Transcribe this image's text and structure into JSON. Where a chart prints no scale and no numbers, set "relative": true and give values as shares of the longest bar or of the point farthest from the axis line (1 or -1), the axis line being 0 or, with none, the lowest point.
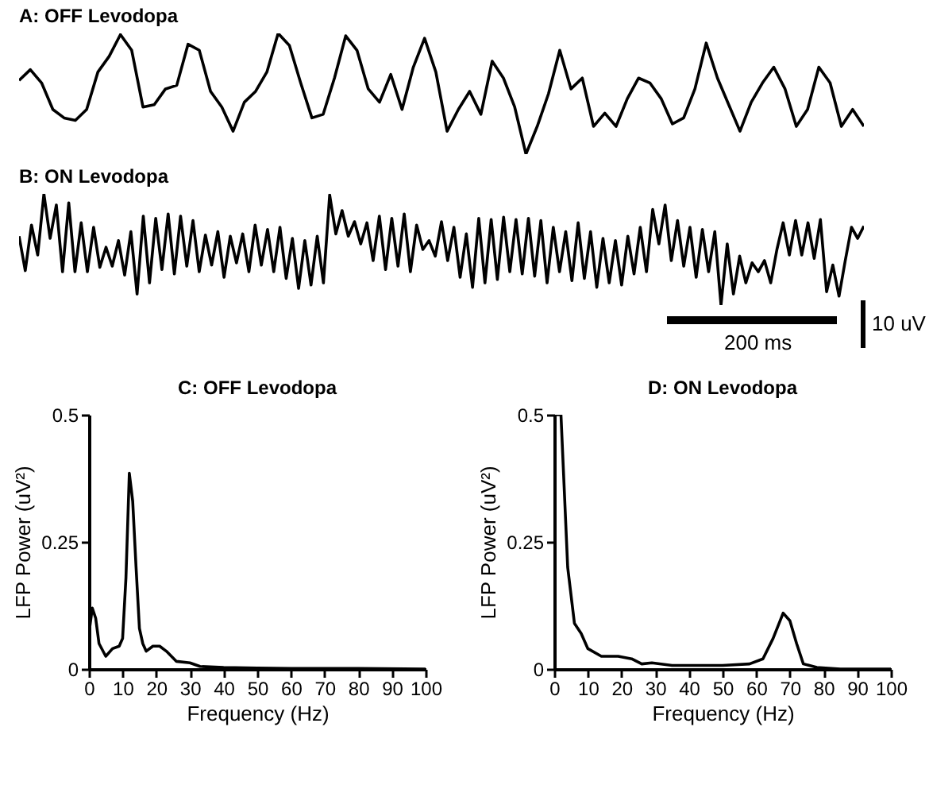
{
  "chart_data": [
    {
      "type": "line",
      "title": "A: OFF Levodopa",
      "relative": true,
      "color": "#000000",
      "categories": [
        null,
        null,
        null,
        null,
        null,
        null,
        null,
        null,
        null,
        null,
        null,
        null,
        null,
        null,
        null,
        null,
        null,
        null,
        null,
        null,
        null,
        null,
        null,
        null,
        null,
        null,
        null,
        null,
        null,
        null,
        null,
        null,
        null,
        null,
        null,
        null,
        null,
        null,
        null,
        null,
        null,
        null,
        null,
        null,
        null,
        null,
        null,
        null,
        null,
        null,
        null,
        null,
        null,
        null,
        null,
        null,
        null,
        null,
        null,
        null,
        null,
        null,
        null,
        null,
        null,
        null,
        null,
        null,
        null,
        null,
        null,
        null,
        null,
        null,
        null,
        null
      ],
      "values": [
        0.61,
        0.7,
        0.59,
        0.37,
        0.3,
        0.28,
        0.37,
        0.68,
        0.81,
        0.99,
        0.86,
        0.39,
        0.41,
        0.54,
        0.57,
        0.91,
        0.86,
        0.52,
        0.39,
        0.19,
        0.43,
        0.52,
        0.68,
        1.0,
        0.9,
        0.59,
        0.3,
        0.33,
        0.63,
        0.98,
        0.86,
        0.54,
        0.43,
        0.66,
        0.37,
        0.72,
        0.96,
        0.68,
        0.19,
        0.37,
        0.52,
        0.33,
        0.77,
        0.63,
        0.39,
        0.0,
        0.23,
        0.5,
        0.86,
        0.54,
        0.63,
        0.23,
        0.34,
        0.23,
        0.46,
        0.63,
        0.59,
        0.46,
        0.25,
        0.3,
        0.54,
        0.92,
        0.63,
        0.41,
        0.19,
        0.43,
        0.59,
        0.72,
        0.54,
        0.23,
        0.37,
        0.72,
        0.59,
        0.23,
        0.37,
        0.23
      ]
    },
    {
      "type": "line",
      "title": "B: ON Levodopa",
      "relative": true,
      "color": "#000000",
      "annotations": [
        "10 uV",
        "200 ms"
      ],
      "categories": [
        null,
        null,
        null,
        null,
        null,
        null,
        null,
        null,
        null,
        null,
        null,
        null,
        null,
        null,
        null,
        null,
        null,
        null,
        null,
        null,
        null,
        null,
        null,
        null,
        null,
        null,
        null,
        null,
        null,
        null,
        null,
        null,
        null,
        null,
        null,
        null,
        null,
        null,
        null,
        null,
        null,
        null,
        null,
        null,
        null,
        null,
        null,
        null,
        null,
        null,
        null,
        null,
        null,
        null,
        null,
        null,
        null,
        null,
        null,
        null,
        null,
        null,
        null,
        null,
        null,
        null,
        null,
        null,
        null,
        null,
        null,
        null,
        null,
        null,
        null,
        null,
        null,
        null,
        null,
        null,
        null,
        null,
        null,
        null,
        null,
        null,
        null,
        null,
        null,
        null,
        null,
        null,
        null,
        null,
        null,
        null,
        null,
        null,
        null,
        null,
        null,
        null,
        null,
        null,
        null,
        null,
        null,
        null,
        null,
        null,
        null,
        null,
        null,
        null,
        null,
        null,
        null,
        null,
        null,
        null,
        null,
        null,
        null,
        null,
        null,
        null,
        null,
        null,
        null,
        null,
        null,
        null,
        null,
        null,
        null,
        null,
        null
      ],
      "values": [
        0.62,
        0.31,
        0.72,
        0.45,
        1.0,
        0.6,
        0.9,
        0.3,
        0.92,
        0.3,
        0.74,
        0.3,
        0.7,
        0.34,
        0.52,
        0.35,
        0.58,
        0.27,
        0.66,
        0.1,
        0.8,
        0.2,
        0.78,
        0.32,
        0.82,
        0.28,
        0.8,
        0.35,
        0.76,
        0.3,
        0.63,
        0.36,
        0.66,
        0.25,
        0.62,
        0.38,
        0.64,
        0.3,
        0.72,
        0.36,
        0.68,
        0.3,
        0.7,
        0.24,
        0.6,
        0.15,
        0.58,
        0.18,
        0.62,
        0.2,
        0.99,
        0.64,
        0.85,
        0.62,
        0.75,
        0.55,
        0.74,
        0.4,
        0.8,
        0.32,
        0.78,
        0.35,
        0.82,
        0.3,
        0.72,
        0.5,
        0.58,
        0.44,
        0.75,
        0.4,
        0.7,
        0.25,
        0.64,
        0.16,
        0.78,
        0.2,
        0.77,
        0.23,
        0.79,
        0.3,
        0.77,
        0.28,
        0.78,
        0.26,
        0.76,
        0.2,
        0.7,
        0.3,
        0.66,
        0.22,
        0.74,
        0.24,
        0.66,
        0.16,
        0.6,
        0.2,
        0.58,
        0.18,
        0.62,
        0.28,
        0.7,
        0.3,
        0.86,
        0.55,
        0.9,
        0.4,
        0.76,
        0.35,
        0.7,
        0.25,
        0.68,
        0.3,
        0.66,
        0.0,
        0.55,
        0.1,
        0.44,
        0.2,
        0.38,
        0.3,
        0.4,
        0.2,
        0.5,
        0.74,
        0.45,
        0.76,
        0.45,
        0.74,
        0.42,
        0.77,
        0.12,
        0.36,
        0.08,
        0.4,
        0.7,
        0.6,
        0.71
      ]
    },
    {
      "type": "line",
      "title": "C: OFF Levodopa",
      "xlabel": "Frequency (Hz)",
      "ylabel": "LFP Power (uV²)",
      "color": "#000000",
      "xlim": [
        0,
        100
      ],
      "xticks": [
        0,
        10,
        20,
        30,
        40,
        50,
        60,
        70,
        80,
        90,
        100
      ],
      "ylim": [
        0,
        0.5
      ],
      "yticks": [
        0,
        0.25,
        0.5
      ],
      "x": [
        0,
        1,
        2,
        3,
        5,
        7,
        9,
        10,
        11,
        12,
        13,
        14,
        15,
        16,
        17,
        19,
        21,
        23,
        26,
        30,
        33,
        40,
        50,
        60,
        80,
        100
      ],
      "values": [
        0.07,
        0.12,
        0.1,
        0.05,
        0.025,
        0.04,
        0.045,
        0.06,
        0.18,
        0.385,
        0.33,
        0.2,
        0.08,
        0.05,
        0.035,
        0.045,
        0.045,
        0.035,
        0.015,
        0.012,
        0.005,
        0.003,
        0.002,
        0.001,
        0.001,
        0
      ]
    },
    {
      "type": "line",
      "title": "D: ON Levodopa",
      "xlabel": "Frequency (Hz)",
      "ylabel": "LFP Power (uV²)",
      "color": "#000000",
      "xlim": [
        0,
        100
      ],
      "xticks": [
        0,
        10,
        20,
        30,
        40,
        50,
        60,
        70,
        80,
        90,
        100
      ],
      "ylim": [
        0,
        0.5
      ],
      "yticks": [
        0,
        0.25,
        0.5
      ],
      "x": [
        0,
        2,
        3,
        4,
        6,
        8,
        10,
        14,
        19,
        23,
        26,
        29,
        35,
        50,
        58,
        62,
        65,
        68,
        70,
        72,
        74,
        78,
        85,
        100
      ],
      "values": [
        0.5,
        0.5,
        0.35,
        0.2,
        0.09,
        0.07,
        0.04,
        0.025,
        0.025,
        0.02,
        0.01,
        0.012,
        0.007,
        0.007,
        0.01,
        0.02,
        0.06,
        0.11,
        0.095,
        0.05,
        0.01,
        0.003,
        0,
        0
      ]
    }
  ]
}
